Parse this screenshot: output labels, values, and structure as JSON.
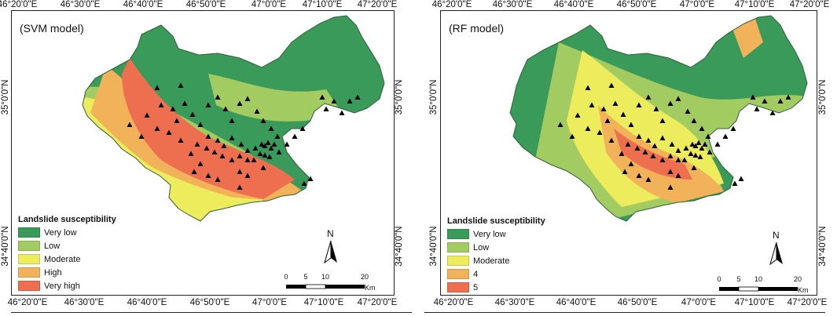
{
  "lon_ticks": [
    "46°20'0\"E",
    "46°30'0\"E",
    "46°40'0\"E",
    "46°50'0\"E",
    "47°0'0\"E",
    "47°10'0\"E",
    "47°20'0\"E"
  ],
  "lat_ticks": [
    "35°0'0\"N",
    "34°40'0\"N"
  ],
  "legend_title": "Landslide susceptibility",
  "colors": {
    "very_low": "#3a9a5a",
    "low": "#a2cc62",
    "moderate": "#ecec5c",
    "high": "#f2b25a",
    "very_high": "#ee6e50"
  },
  "scale": {
    "labels": [
      "0",
      "5",
      "10",
      "20"
    ],
    "unit": "Km"
  },
  "north_label": "N",
  "panels": [
    {
      "id": "svm",
      "label": "(SVM model)",
      "legend": [
        "Very low",
        "Low",
        "Moderate",
        "High",
        "Very high"
      ]
    },
    {
      "id": "rf",
      "label": "(RF model)",
      "legend": [
        "Very low",
        "Low",
        "Moderate",
        "4",
        "5"
      ]
    }
  ]
}
